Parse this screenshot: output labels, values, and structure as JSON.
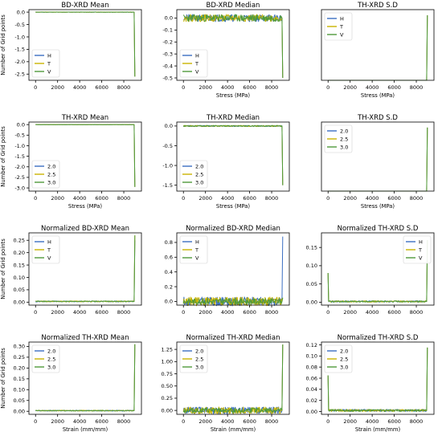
{
  "colors": {
    "H": "#3b6fc2",
    "T": "#c9b400",
    "V": "#4f9a3a",
    "axis": "#000000"
  },
  "chart_data": [
    {
      "type": "line",
      "title": "BD-XRD Mean",
      "xlabel": "",
      "ylabel": "Number of Grid points",
      "xlim": [
        -600,
        9600
      ],
      "ylim": [
        -2.75,
        0.1
      ],
      "xticks": [
        0,
        2000,
        4000,
        6000,
        8000
      ],
      "yticks": [
        0.0,
        -0.5,
        -1.0,
        -1.5,
        -2.0,
        -2.5
      ],
      "yticklabels": [
        "0.0",
        "-0.5",
        "-1.0",
        "-1.5",
        "-2.0",
        "-2.5"
      ],
      "legend": "bottom-left",
      "legend_entries": [
        "H",
        "T",
        "V"
      ],
      "series": [
        {
          "name": "H",
          "base": 0.0,
          "noise": 0.005,
          "spike": -2.6,
          "spike_x": 9000,
          "seed": 11
        },
        {
          "name": "T",
          "base": 0.0,
          "noise": 0.005,
          "spike": -2.6,
          "spike_x": 9000,
          "seed": 12
        },
        {
          "name": "V",
          "base": 0.0,
          "noise": 0.005,
          "spike": -2.6,
          "spike_x": 9000,
          "seed": 13
        }
      ]
    },
    {
      "type": "line",
      "title": "BD-XRD Median",
      "xlabel": "Stress (MPa)",
      "ylabel": "",
      "xlim": [
        -600,
        9600
      ],
      "ylim": [
        -0.52,
        0.07
      ],
      "xticks": [
        0,
        2000,
        4000,
        6000,
        8000
      ],
      "yticks": [
        0.0,
        -0.1,
        -0.2,
        -0.3,
        -0.4,
        -0.5
      ],
      "yticklabels": [
        "0.0",
        "-0.1",
        "-0.2",
        "-0.3",
        "-0.4",
        "-0.5"
      ],
      "legend": "bottom-left",
      "legend_entries": [
        "H",
        "T",
        "V"
      ],
      "series": [
        {
          "name": "H",
          "base": 0.0,
          "noise": 0.03,
          "spike": -0.5,
          "spike_x": 9000,
          "seed": 21
        },
        {
          "name": "T",
          "base": 0.0,
          "noise": 0.03,
          "spike": -0.5,
          "spike_x": 9000,
          "seed": 22
        },
        {
          "name": "V",
          "base": 0.0,
          "noise": 0.03,
          "spike": -0.5,
          "spike_x": 9000,
          "seed": 23
        }
      ]
    },
    {
      "type": "line",
      "title": "TH-XRD S.D",
      "xlabel": "Stress (MPa)",
      "ylabel": "",
      "xlim": [
        -600,
        9600
      ],
      "ylim": [
        0,
        1
      ],
      "xticks": [
        0,
        2000,
        4000,
        6000,
        8000
      ],
      "yticks": [],
      "yticklabels": [],
      "legend": "top-left",
      "legend_entries": [
        "H",
        "T",
        "V"
      ],
      "series": [
        {
          "name": "H",
          "base": 0.0,
          "noise": 0.0,
          "spike": 0.92,
          "spike_x": 9000,
          "seed": 31
        },
        {
          "name": "T",
          "base": 0.0,
          "noise": 0.0,
          "spike": 0.92,
          "spike_x": 9000,
          "seed": 32
        },
        {
          "name": "V",
          "base": 0.0,
          "noise": 0.0,
          "spike": 0.92,
          "spike_x": 9000,
          "seed": 33
        }
      ]
    },
    {
      "type": "line",
      "title": "TH-XRD Mean",
      "xlabel": "Stress (MPa)",
      "ylabel": "Number of Grid points",
      "xlim": [
        -600,
        9600
      ],
      "ylim": [
        -3.15,
        0.12
      ],
      "xticks": [
        0,
        2000,
        4000,
        6000,
        8000
      ],
      "yticks": [
        0.0,
        -0.5,
        -1.0,
        -1.5,
        -2.0,
        -2.5,
        -3.0
      ],
      "yticklabels": [
        "0.0",
        "-0.5",
        "-1.0",
        "-1.5",
        "-2.0",
        "-2.5",
        "-3.0"
      ],
      "legend": "bottom-left",
      "legend_entries": [
        "2.0",
        "2.5",
        "3.0"
      ],
      "series": [
        {
          "name": "2.0",
          "base": 0.0,
          "noise": 0.005,
          "spike": -2.95,
          "spike_x": 9000,
          "seed": 41
        },
        {
          "name": "2.5",
          "base": 0.0,
          "noise": 0.005,
          "spike": -2.95,
          "spike_x": 9000,
          "seed": 42
        },
        {
          "name": "3.0",
          "base": 0.0,
          "noise": 0.005,
          "spike": -2.95,
          "spike_x": 9000,
          "seed": 43
        }
      ]
    },
    {
      "type": "line",
      "title": "TH-XRD Median",
      "xlabel": "Stress (MPa)",
      "ylabel": "",
      "xlim": [
        -600,
        9600
      ],
      "ylim": [
        -1.65,
        0.1
      ],
      "xticks": [
        0,
        2000,
        4000,
        6000,
        8000
      ],
      "yticks": [
        0.0,
        -0.5,
        -1.0,
        -1.5
      ],
      "yticklabels": [
        "0.0",
        "-0.5",
        "-1.0",
        "-1.5"
      ],
      "legend": "bottom-left",
      "legend_entries": [
        "2.0",
        "2.5",
        "3.0"
      ],
      "series": [
        {
          "name": "2.0",
          "base": 0.0,
          "noise": 0.015,
          "spike": -1.5,
          "spike_x": 9000,
          "seed": 51
        },
        {
          "name": "2.5",
          "base": 0.0,
          "noise": 0.015,
          "spike": -1.5,
          "spike_x": 9000,
          "seed": 52
        },
        {
          "name": "3.0",
          "base": 0.0,
          "noise": 0.015,
          "spike": -1.5,
          "spike_x": 9000,
          "seed": 53
        }
      ]
    },
    {
      "type": "line",
      "title": "TH-XRD S.D",
      "xlabel": "Stress (MPa)",
      "ylabel": "",
      "xlim": [
        -600,
        9600
      ],
      "ylim": [
        0,
        1
      ],
      "xticks": [
        0,
        2000,
        4000,
        6000,
        8000
      ],
      "yticks": [],
      "yticklabels": [],
      "legend": "top-left",
      "legend_entries": [
        "2.0",
        "2.5",
        "3.0"
      ],
      "series": [
        {
          "name": "2.0",
          "base": 0.0,
          "noise": 0.0,
          "spike": 0.92,
          "spike_x": 9000,
          "seed": 61
        },
        {
          "name": "2.5",
          "base": 0.0,
          "noise": 0.0,
          "spike": 0.92,
          "spike_x": 9000,
          "seed": 62
        },
        {
          "name": "3.0",
          "base": 0.0,
          "noise": 0.0,
          "spike": 0.92,
          "spike_x": 9000,
          "seed": 63
        }
      ]
    },
    {
      "type": "line",
      "title": "Normalized BD-XRD Mean",
      "xlabel": "",
      "ylabel": "Number of Grid points",
      "xlim": [
        -600,
        9600
      ],
      "ylim": [
        -0.012,
        0.28
      ],
      "xticks": [
        0,
        2000,
        4000,
        6000,
        8000
      ],
      "yticks": [
        0.0,
        0.05,
        0.1,
        0.15,
        0.2,
        0.25
      ],
      "yticklabels": [
        "0.00",
        "0.05",
        "0.10",
        "0.15",
        "0.20",
        "0.25"
      ],
      "legend": "top-left",
      "legend_entries": [
        "H",
        "T",
        "V"
      ],
      "series": [
        {
          "name": "H",
          "base": 0.003,
          "noise": 0.002,
          "spike": 0.25,
          "spike_x": 9000,
          "seed": 71
        },
        {
          "name": "T",
          "base": 0.003,
          "noise": 0.002,
          "spike": 0.27,
          "spike_x": 9000,
          "seed": 72
        },
        {
          "name": "V",
          "base": 0.003,
          "noise": 0.002,
          "spike": 0.27,
          "spike_x": 9000,
          "seed": 73
        }
      ]
    },
    {
      "type": "line",
      "title": "Normalized BD-XRD Median",
      "xlabel": "",
      "ylabel": "",
      "xlim": [
        -600,
        9600
      ],
      "ylim": [
        -0.05,
        0.93
      ],
      "xticks": [
        0,
        2000,
        4000,
        6000,
        8000
      ],
      "yticks": [
        0.0,
        0.2,
        0.4,
        0.6,
        0.8
      ],
      "yticklabels": [
        "0.0",
        "0.2",
        "0.4",
        "0.6",
        "0.8"
      ],
      "legend": "top-left",
      "legend_entries": [
        "H",
        "T",
        "V"
      ],
      "series": [
        {
          "name": "H",
          "base": 0.0,
          "noise": 0.06,
          "spike": 0.88,
          "spike_x": 9000,
          "seed": 81
        },
        {
          "name": "T",
          "base": 0.0,
          "noise": 0.06,
          "spike": 0.05,
          "spike_x": 9000,
          "seed": 82
        },
        {
          "name": "V",
          "base": 0.0,
          "noise": 0.04,
          "spike": 0.05,
          "spike_x": 9000,
          "seed": 83
        }
      ]
    },
    {
      "type": "line",
      "title": "Normalized TH-XRD S.D",
      "xlabel": "",
      "ylabel": "",
      "xlim": [
        -600,
        9600
      ],
      "ylim": [
        -0.008,
        0.19
      ],
      "xticks": [
        0,
        2000,
        4000,
        6000,
        8000
      ],
      "yticks": [
        0.0,
        0.05,
        0.1,
        0.15
      ],
      "yticklabels": [
        "0.00",
        "0.05",
        "0.10",
        "0.15"
      ],
      "legend": "top-right",
      "legend_entries": [
        "H",
        "T",
        "V"
      ],
      "series": [
        {
          "name": "H",
          "base": 0.002,
          "noise": 0.002,
          "spike": 0.17,
          "spike_x": 9000,
          "start": 0.08,
          "seed": 91
        },
        {
          "name": "T",
          "base": 0.002,
          "noise": 0.002,
          "spike": 0.17,
          "spike_x": 9000,
          "start": 0.08,
          "seed": 92
        },
        {
          "name": "V",
          "base": 0.002,
          "noise": 0.002,
          "spike": 0.17,
          "spike_x": 9000,
          "start": 0.08,
          "seed": 93
        }
      ]
    },
    {
      "type": "line",
      "title": "Normalized TH-XRD Mean",
      "xlabel": "Strain (mm/mm)",
      "ylabel": "Number of Grid points",
      "xlim": [
        -600,
        9600
      ],
      "ylim": [
        -0.014,
        0.32
      ],
      "xticks": [
        0,
        2000,
        4000,
        6000,
        8000
      ],
      "yticks": [
        0.0,
        0.05,
        0.1,
        0.15,
        0.2,
        0.25,
        0.3
      ],
      "yticklabels": [
        "0.00",
        "0.05",
        "0.10",
        "0.15",
        "0.20",
        "0.25",
        "0.30"
      ],
      "legend": "top-left",
      "legend_entries": [
        "2.0",
        "2.5",
        "3.0"
      ],
      "series": [
        {
          "name": "2.0",
          "base": 0.003,
          "noise": 0.002,
          "spike": 0.31,
          "spike_x": 9000,
          "seed": 101
        },
        {
          "name": "2.5",
          "base": 0.003,
          "noise": 0.002,
          "spike": 0.31,
          "spike_x": 9000,
          "seed": 102
        },
        {
          "name": "3.0",
          "base": 0.003,
          "noise": 0.002,
          "spike": 0.31,
          "spike_x": 9000,
          "seed": 103
        }
      ]
    },
    {
      "type": "line",
      "title": "Normalized TH-XRD Median",
      "xlabel": "Strain (mm/mm)",
      "ylabel": "",
      "xlim": [
        -600,
        9600
      ],
      "ylim": [
        -0.08,
        1.4
      ],
      "xticks": [
        0,
        2000,
        4000,
        6000,
        8000
      ],
      "yticks": [
        0.0,
        0.25,
        0.5,
        0.75,
        1.0,
        1.25
      ],
      "yticklabels": [
        "0.00",
        "0.25",
        "0.50",
        "0.75",
        "1.00",
        "1.25"
      ],
      "legend": "top-left",
      "legend_entries": [
        "2.0",
        "2.5",
        "3.0"
      ],
      "series": [
        {
          "name": "2.0",
          "base": 0.0,
          "noise": 0.07,
          "spike": 1.35,
          "spike_x": 9000,
          "seed": 111
        },
        {
          "name": "2.5",
          "base": 0.0,
          "noise": 0.07,
          "spike": 1.35,
          "spike_x": 9000,
          "seed": 112
        },
        {
          "name": "3.0",
          "base": 0.0,
          "noise": 0.05,
          "spike": 1.35,
          "spike_x": 9000,
          "seed": 113
        }
      ]
    },
    {
      "type": "line",
      "title": "Normalized TH-XRD S.D",
      "xlabel": "Strain (mm/mm)",
      "ylabel": "",
      "xlim": [
        -600,
        9600
      ],
      "ylim": [
        -0.005,
        0.125
      ],
      "xticks": [
        0,
        2000,
        4000,
        6000,
        8000
      ],
      "yticks": [
        0.0,
        0.02,
        0.04,
        0.06,
        0.08,
        0.1,
        0.12
      ],
      "yticklabels": [
        "0.00",
        "0.02",
        "0.04",
        "0.06",
        "0.08",
        "0.10",
        "0.12"
      ],
      "legend": "top-left",
      "legend_entries": [
        "2.0",
        "2.5",
        "3.0"
      ],
      "series": [
        {
          "name": "2.0",
          "base": 0.002,
          "noise": 0.002,
          "spike": 0.115,
          "spike_x": 9000,
          "start": 0.065,
          "seed": 121
        },
        {
          "name": "2.5",
          "base": 0.002,
          "noise": 0.002,
          "spike": 0.115,
          "spike_x": 9000,
          "start": 0.065,
          "seed": 122
        },
        {
          "name": "3.0",
          "base": 0.002,
          "noise": 0.002,
          "spike": 0.115,
          "spike_x": 9000,
          "start": 0.065,
          "seed": 123
        }
      ]
    }
  ]
}
